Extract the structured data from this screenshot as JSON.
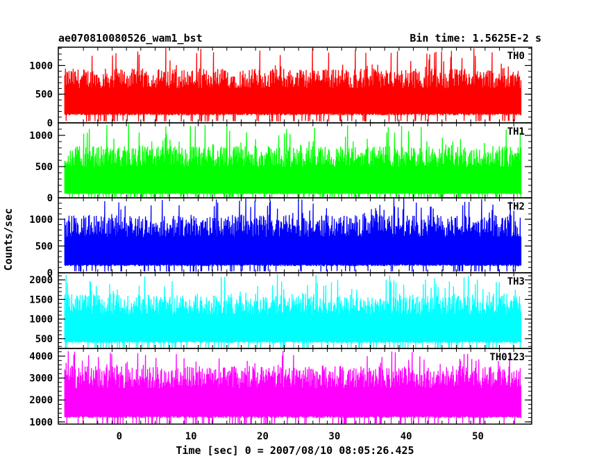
{
  "chart_data": {
    "type": "line",
    "title": "ae070810080526_wam1_bst",
    "subtitle": "Bin time: 1.5625E-2 s",
    "xlabel": "Time [sec] 0 = 2007/08/10 08:05:26.425",
    "ylabel": "Counts/sec",
    "xlim": [
      -8.5,
      57.5
    ],
    "x_data_range": [
      -7.6,
      56.0
    ],
    "x_ticks": [
      0,
      10,
      20,
      30,
      40,
      50
    ],
    "x_tick_labels": [
      "0",
      "10",
      "20",
      "30",
      "40",
      "50"
    ],
    "panels": [
      {
        "name": "TH0",
        "color": "#ff0000",
        "ylim": [
          0,
          1320
        ],
        "y_ticks": [
          0,
          500,
          1000
        ],
        "y_tick_labels": [
          "0",
          "500",
          "1000"
        ],
        "typical_low": 180,
        "typical_high": 950,
        "min": 20,
        "max": 1320
      },
      {
        "name": "TH1",
        "color": "#00ff00",
        "ylim": [
          0,
          1200
        ],
        "y_ticks": [
          0,
          500,
          1000
        ],
        "y_tick_labels": [
          "0",
          "500",
          "1000"
        ],
        "typical_low": 80,
        "typical_high": 830,
        "min": 10,
        "max": 1200
      },
      {
        "name": "TH2",
        "color": "#0000ff",
        "ylim": [
          0,
          1400
        ],
        "y_ticks": [
          0,
          500,
          1000
        ],
        "y_tick_labels": [
          "0",
          "500",
          "1000"
        ],
        "typical_low": 170,
        "typical_high": 1080,
        "min": 20,
        "max": 1400
      },
      {
        "name": "TH3",
        "color": "#00ffff",
        "ylim": [
          250,
          2180
        ],
        "y_ticks": [
          500,
          1000,
          1500,
          2000
        ],
        "y_tick_labels": [
          "500",
          "1000",
          "1500",
          "2000"
        ],
        "typical_low": 450,
        "typical_high": 1650,
        "min": 250,
        "max": 2150
      },
      {
        "name": "TH0123",
        "color": "#ff00ff",
        "ylim": [
          900,
          4350
        ],
        "y_ticks": [
          1000,
          2000,
          3000,
          4000
        ],
        "y_tick_labels": [
          "1000",
          "2000",
          "3000",
          "4000"
        ],
        "typical_low": 1300,
        "typical_high": 3550,
        "min": 900,
        "max": 4300
      }
    ]
  }
}
